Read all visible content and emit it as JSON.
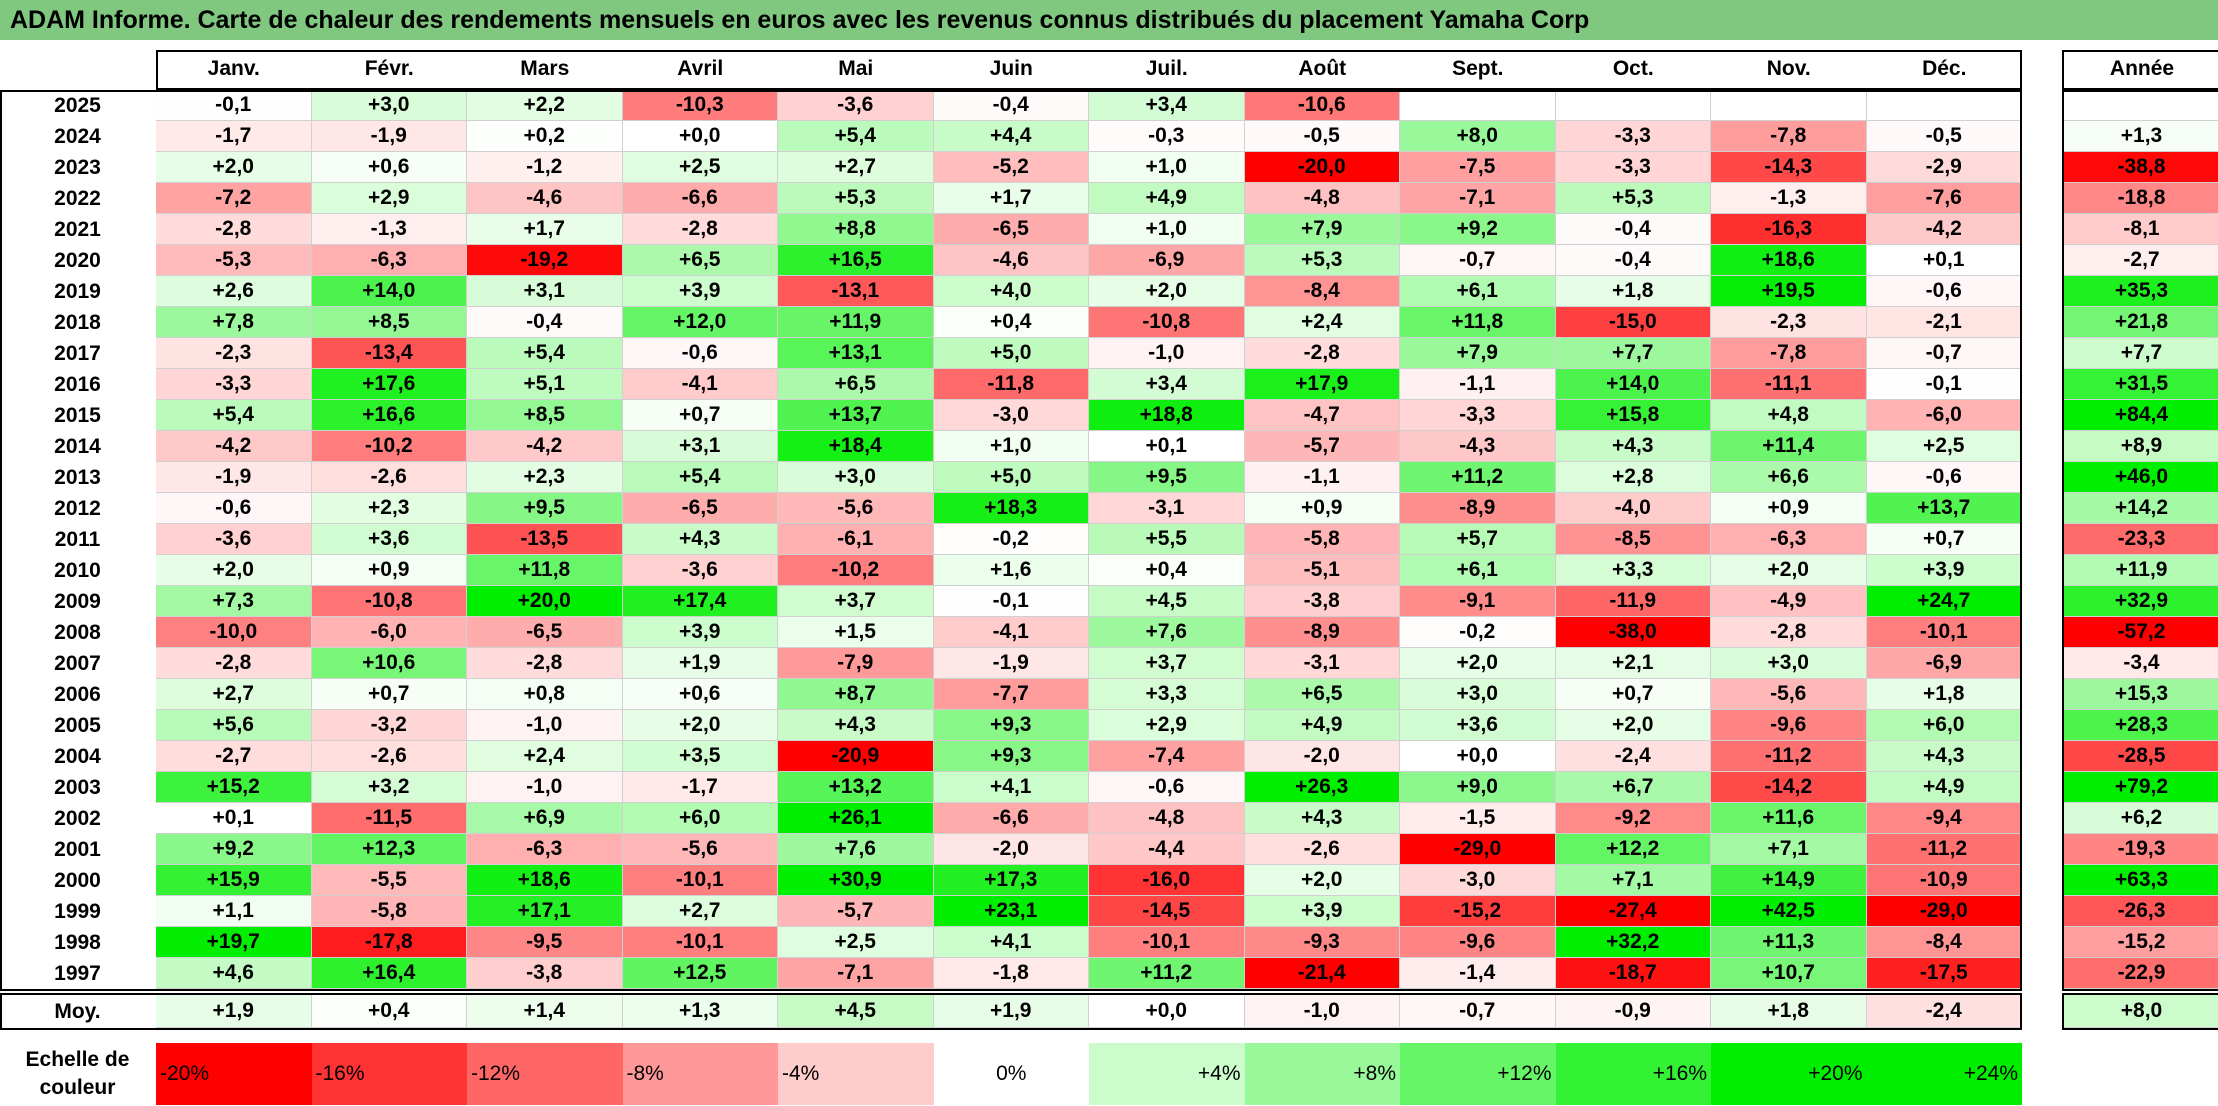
{
  "title": "ADAM Informe. Carte de chaleur des rendements mensuels en euros avec les revenus connus distribués du placement Yamaha Corp",
  "chart_data": {
    "type": "heatmap",
    "columns": [
      "Janv.",
      "Févr.",
      "Mars",
      "Avril",
      "Mai",
      "Juin",
      "Juil.",
      "Août",
      "Sept.",
      "Oct.",
      "Nov.",
      "Déc."
    ],
    "annual_header": "Année",
    "rows": [
      {
        "year": "2025",
        "values": [
          -0.1,
          3.0,
          2.2,
          -10.3,
          -3.6,
          -0.4,
          3.4,
          -10.6,
          null,
          null,
          null,
          null
        ],
        "annual": null
      },
      {
        "year": "2024",
        "values": [
          -1.7,
          -1.9,
          0.2,
          0.0,
          5.4,
          4.4,
          -0.3,
          -0.5,
          8.0,
          -3.3,
          -7.8,
          -0.5
        ],
        "annual": 1.3
      },
      {
        "year": "2023",
        "values": [
          2.0,
          0.6,
          -1.2,
          2.5,
          2.7,
          -5.2,
          1.0,
          -20.0,
          -7.5,
          -3.3,
          -14.3,
          -2.9
        ],
        "annual": -38.8
      },
      {
        "year": "2022",
        "values": [
          -7.2,
          2.9,
          -4.6,
          -6.6,
          5.3,
          1.7,
          4.9,
          -4.8,
          -7.1,
          5.3,
          -1.3,
          -7.6
        ],
        "annual": -18.8
      },
      {
        "year": "2021",
        "values": [
          -2.8,
          -1.3,
          1.7,
          -2.8,
          8.8,
          -6.5,
          1.0,
          7.9,
          9.2,
          -0.4,
          -16.3,
          -4.2
        ],
        "annual": -8.1
      },
      {
        "year": "2020",
        "values": [
          -5.3,
          -6.3,
          -19.2,
          6.5,
          16.5,
          -4.6,
          -6.9,
          5.3,
          -0.7,
          -0.4,
          18.6,
          0.1
        ],
        "annual": -2.7
      },
      {
        "year": "2019",
        "values": [
          2.6,
          14.0,
          3.1,
          3.9,
          -13.1,
          4.0,
          2.0,
          -8.4,
          6.1,
          1.8,
          19.5,
          -0.6
        ],
        "annual": 35.3
      },
      {
        "year": "2018",
        "values": [
          7.8,
          8.5,
          -0.4,
          12.0,
          11.9,
          0.4,
          -10.8,
          2.4,
          11.8,
          -15.0,
          -2.3,
          -2.1
        ],
        "annual": 21.8
      },
      {
        "year": "2017",
        "values": [
          -2.3,
          -13.4,
          5.4,
          -0.6,
          13.1,
          5.0,
          -1.0,
          -2.8,
          7.9,
          7.7,
          -7.8,
          -0.7
        ],
        "annual": 7.7
      },
      {
        "year": "2016",
        "values": [
          -3.3,
          17.6,
          5.1,
          -4.1,
          6.5,
          -11.8,
          3.4,
          17.9,
          -1.1,
          14.0,
          -11.1,
          -0.1
        ],
        "annual": 31.5
      },
      {
        "year": "2015",
        "values": [
          5.4,
          16.6,
          8.5,
          0.7,
          13.7,
          -3.0,
          18.8,
          -4.7,
          -3.3,
          15.8,
          4.8,
          -6.0
        ],
        "annual": 84.4
      },
      {
        "year": "2014",
        "values": [
          -4.2,
          -10.2,
          -4.2,
          3.1,
          18.4,
          1.0,
          0.1,
          -5.7,
          -4.3,
          4.3,
          11.4,
          2.5
        ],
        "annual": 8.9
      },
      {
        "year": "2013",
        "values": [
          -1.9,
          -2.6,
          2.3,
          5.4,
          3.0,
          5.0,
          9.5,
          -1.1,
          11.2,
          2.8,
          6.6,
          -0.6
        ],
        "annual": 46.0
      },
      {
        "year": "2012",
        "values": [
          -0.6,
          2.3,
          9.5,
          -6.5,
          -5.6,
          18.3,
          -3.1,
          0.9,
          -8.9,
          -4.0,
          0.9,
          13.7
        ],
        "annual": 14.2
      },
      {
        "year": "2011",
        "values": [
          -3.6,
          3.6,
          -13.5,
          4.3,
          -6.1,
          -0.2,
          5.5,
          -5.8,
          5.7,
          -8.5,
          -6.3,
          0.7
        ],
        "annual": -23.3
      },
      {
        "year": "2010",
        "values": [
          2.0,
          0.9,
          11.8,
          -3.6,
          -10.2,
          1.6,
          0.4,
          -5.1,
          6.1,
          3.3,
          2.0,
          3.9
        ],
        "annual": 11.9
      },
      {
        "year": "2009",
        "values": [
          7.3,
          -10.8,
          20.0,
          17.4,
          3.7,
          -0.1,
          4.5,
          -3.8,
          -9.1,
          -11.9,
          -4.9,
          24.7
        ],
        "annual": 32.9
      },
      {
        "year": "2008",
        "values": [
          -10.0,
          -6.0,
          -6.5,
          3.9,
          1.5,
          -4.1,
          7.6,
          -8.9,
          -0.2,
          -38.0,
          -2.8,
          -10.1
        ],
        "annual": -57.2
      },
      {
        "year": "2007",
        "values": [
          -2.8,
          10.6,
          -2.8,
          1.9,
          -7.9,
          -1.9,
          3.7,
          -3.1,
          2.0,
          2.1,
          3.0,
          -6.9
        ],
        "annual": -3.4
      },
      {
        "year": "2006",
        "values": [
          2.7,
          0.7,
          0.8,
          0.6,
          8.7,
          -7.7,
          3.3,
          6.5,
          3.0,
          0.7,
          -5.6,
          1.8
        ],
        "annual": 15.3
      },
      {
        "year": "2005",
        "values": [
          5.6,
          -3.2,
          -1.0,
          2.0,
          4.3,
          9.3,
          2.9,
          4.9,
          3.6,
          2.0,
          -9.6,
          6.0
        ],
        "annual": 28.3
      },
      {
        "year": "2004",
        "values": [
          -2.7,
          -2.6,
          2.4,
          3.5,
          -20.9,
          9.3,
          -7.4,
          -2.0,
          0.0,
          -2.4,
          -11.2,
          4.3
        ],
        "annual": -28.5
      },
      {
        "year": "2003",
        "values": [
          15.2,
          3.2,
          -1.0,
          -1.7,
          13.2,
          4.1,
          -0.6,
          26.3,
          9.0,
          6.7,
          -14.2,
          4.9
        ],
        "annual": 79.2
      },
      {
        "year": "2002",
        "values": [
          0.1,
          -11.5,
          6.9,
          6.0,
          26.1,
          -6.6,
          -4.8,
          4.3,
          -1.5,
          -9.2,
          11.6,
          -9.4
        ],
        "annual": 6.2
      },
      {
        "year": "2001",
        "values": [
          9.2,
          12.3,
          -6.3,
          -5.6,
          7.6,
          -2.0,
          -4.4,
          -2.6,
          -29.0,
          12.2,
          7.1,
          -11.2
        ],
        "annual": -19.3
      },
      {
        "year": "2000",
        "values": [
          15.9,
          -5.5,
          18.6,
          -10.1,
          30.9,
          17.3,
          -16.0,
          2.0,
          -3.0,
          7.1,
          14.9,
          -10.9
        ],
        "annual": 63.3
      },
      {
        "year": "1999",
        "values": [
          1.1,
          -5.8,
          17.1,
          2.7,
          -5.7,
          23.1,
          -14.5,
          3.9,
          -15.2,
          -27.4,
          42.5,
          -29.0
        ],
        "annual": -26.3
      },
      {
        "year": "1998",
        "values": [
          19.7,
          -17.8,
          -9.5,
          -10.1,
          2.5,
          4.1,
          -10.1,
          -9.3,
          -9.6,
          32.2,
          11.3,
          -8.4
        ],
        "annual": -15.2
      },
      {
        "year": "1997",
        "values": [
          4.6,
          16.4,
          -3.8,
          12.5,
          -7.1,
          -1.8,
          11.2,
          -21.4,
          -1.4,
          -18.7,
          10.7,
          -17.5
        ],
        "annual": -22.9
      }
    ],
    "average_label": "Moy.",
    "average_values": [
      1.9,
      0.4,
      1.4,
      1.3,
      4.5,
      1.9,
      0.0,
      -1.0,
      -0.7,
      -0.9,
      1.8,
      -2.4
    ],
    "average_annual": 8.0,
    "scale_label": "Echelle de couleur",
    "scale_steps": [
      {
        "label": "-20%",
        "value": -20
      },
      {
        "label": "-16%",
        "value": -16
      },
      {
        "label": "-12%",
        "value": -12
      },
      {
        "label": "-8%",
        "value": -8
      },
      {
        "label": "-4%",
        "value": -4
      },
      {
        "label": "0%",
        "value": 0
      },
      {
        "label": "+4%",
        "value": 4
      },
      {
        "label": "+8%",
        "value": 8
      },
      {
        "label": "+12%",
        "value": 12
      },
      {
        "label": "+16%",
        "value": 16
      },
      {
        "label": "+20%",
        "value": 20
      },
      {
        "label": "+24%",
        "value": 24
      }
    ],
    "colors": {
      "negative_max": "#ff0000",
      "neutral": "#ffffff",
      "positive_max": "#00ee00",
      "title_bar": "#80c880"
    }
  }
}
